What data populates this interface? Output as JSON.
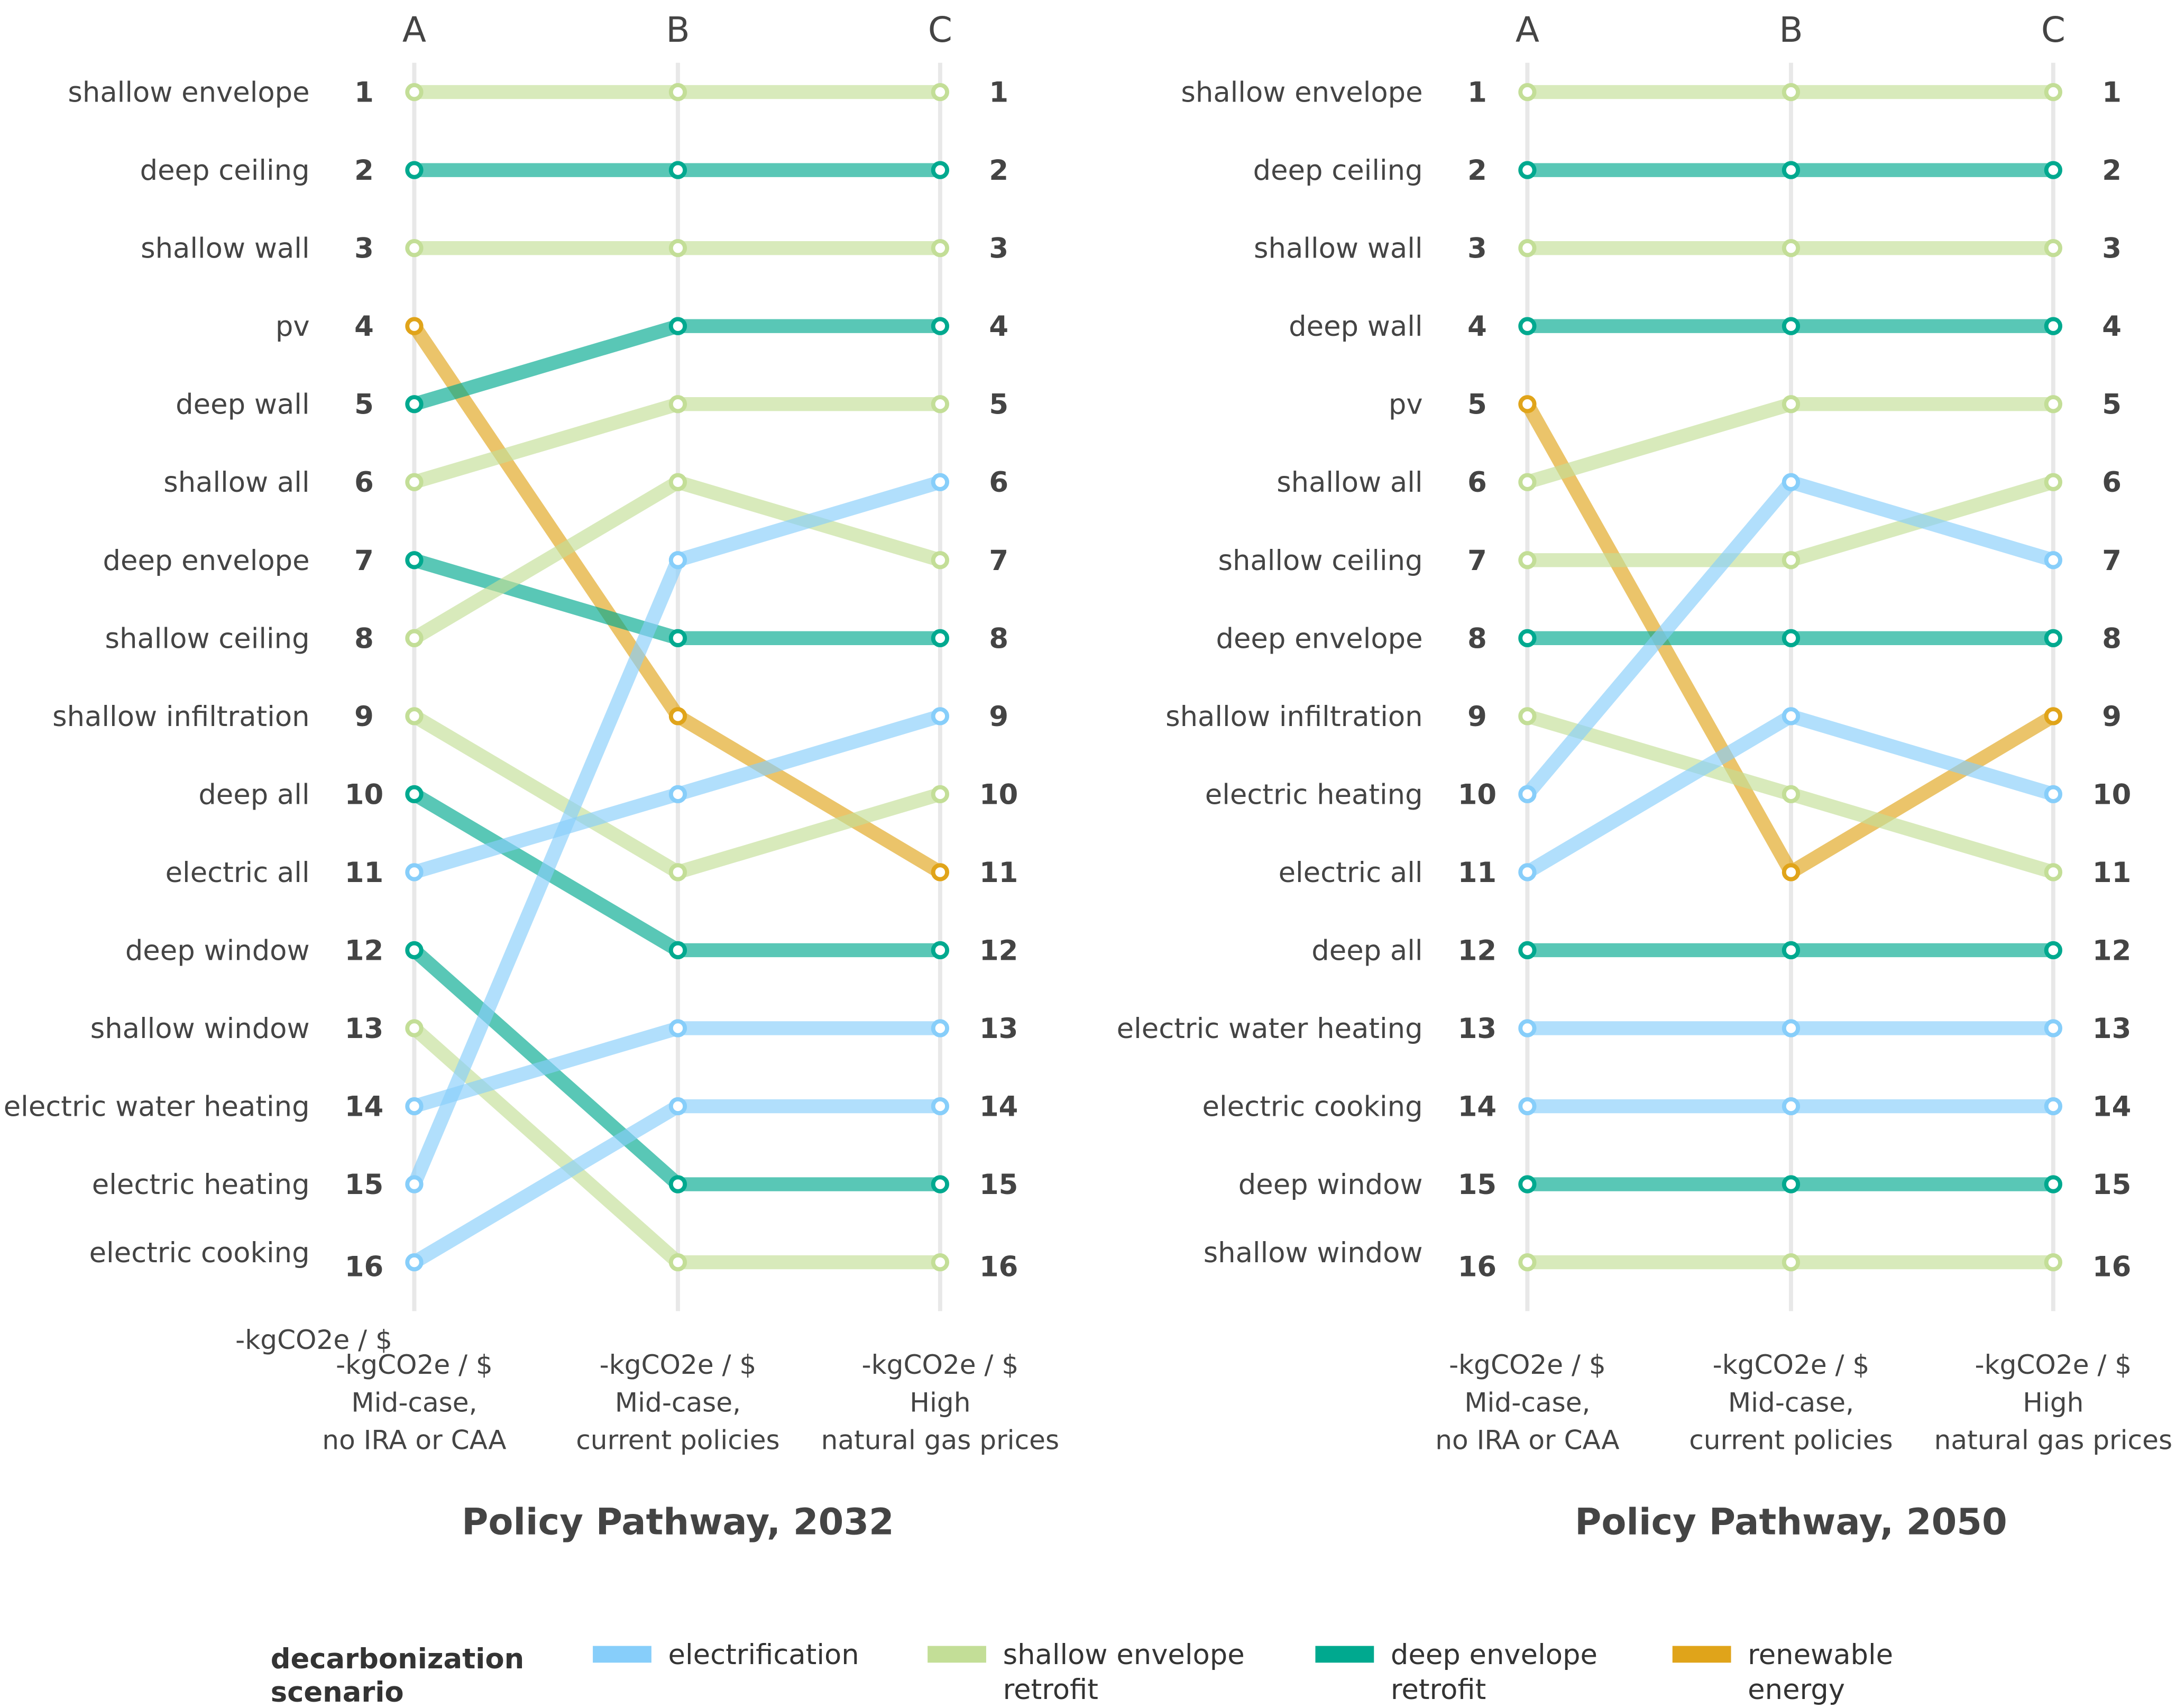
{
  "colors": {
    "electrification": "#87CEFA",
    "shallow": "#C3DE97",
    "deep": "#00A98F",
    "renewable": "#E0A41A"
  },
  "chart_data": [
    {
      "type": "slope",
      "title": "Policy Pathway, 2032",
      "columns": [
        "A",
        "B",
        "C"
      ],
      "xlabel_extra": "-kgCO2e / $",
      "column_labels": [
        [
          "-kgCO2e / $",
          "Mid-case,",
          "no IRA or CAA"
        ],
        [
          "-kgCO2e / $",
          "Mid-case,",
          "current policies"
        ],
        [
          "-kgCO2e / $",
          "High",
          "natural gas prices"
        ]
      ],
      "rank_range": [
        1,
        16
      ],
      "items": [
        {
          "label": "shallow envelope",
          "category": "shallow",
          "ranks": [
            1,
            1,
            1
          ]
        },
        {
          "label": "deep ceiling",
          "category": "deep",
          "ranks": [
            2,
            2,
            2
          ]
        },
        {
          "label": "shallow wall",
          "category": "shallow",
          "ranks": [
            3,
            3,
            3
          ]
        },
        {
          "label": "pv",
          "category": "renewable",
          "ranks": [
            4,
            9,
            11
          ]
        },
        {
          "label": "deep wall",
          "category": "deep",
          "ranks": [
            5,
            4,
            4
          ]
        },
        {
          "label": "shallow all",
          "category": "shallow",
          "ranks": [
            6,
            5,
            5
          ]
        },
        {
          "label": "deep envelope",
          "category": "deep",
          "ranks": [
            7,
            8,
            8
          ]
        },
        {
          "label": "shallow ceiling",
          "category": "shallow",
          "ranks": [
            8,
            6,
            7
          ]
        },
        {
          "label": "shallow infiltration",
          "category": "shallow",
          "ranks": [
            9,
            11,
            10
          ]
        },
        {
          "label": "deep all",
          "category": "deep",
          "ranks": [
            10,
            12,
            12
          ]
        },
        {
          "label": "electric all",
          "category": "electrification",
          "ranks": [
            11,
            10,
            9
          ]
        },
        {
          "label": "deep window",
          "category": "deep",
          "ranks": [
            12,
            15,
            15
          ]
        },
        {
          "label": "shallow window",
          "category": "shallow",
          "ranks": [
            13,
            16,
            16
          ]
        },
        {
          "label": "electric water heating",
          "category": "electrification",
          "ranks": [
            14,
            13,
            13
          ]
        },
        {
          "label": "electric heating",
          "category": "electrification",
          "ranks": [
            15,
            7,
            6
          ]
        },
        {
          "label": "electric cooking",
          "category": "electrification",
          "ranks": [
            16,
            14,
            14
          ]
        }
      ]
    },
    {
      "type": "slope",
      "title": "Policy Pathway, 2050",
      "columns": [
        "A",
        "B",
        "C"
      ],
      "column_labels": [
        [
          "-kgCO2e / $",
          "Mid-case,",
          "no IRA or CAA"
        ],
        [
          "-kgCO2e / $",
          "Mid-case,",
          "current policies"
        ],
        [
          "-kgCO2e / $",
          "High",
          "natural gas prices"
        ]
      ],
      "rank_range": [
        1,
        16
      ],
      "items": [
        {
          "label": "shallow envelope",
          "category": "shallow",
          "ranks": [
            1,
            1,
            1
          ]
        },
        {
          "label": "deep ceiling",
          "category": "deep",
          "ranks": [
            2,
            2,
            2
          ]
        },
        {
          "label": "shallow wall",
          "category": "shallow",
          "ranks": [
            3,
            3,
            3
          ]
        },
        {
          "label": "deep wall",
          "category": "deep",
          "ranks": [
            4,
            4,
            4
          ]
        },
        {
          "label": "pv",
          "category": "renewable",
          "ranks": [
            5,
            11,
            9
          ]
        },
        {
          "label": "shallow all",
          "category": "shallow",
          "ranks": [
            6,
            5,
            5
          ]
        },
        {
          "label": "shallow ceiling",
          "category": "shallow",
          "ranks": [
            7,
            7,
            6
          ]
        },
        {
          "label": "deep envelope",
          "category": "deep",
          "ranks": [
            8,
            8,
            8
          ]
        },
        {
          "label": "shallow infiltration",
          "category": "shallow",
          "ranks": [
            9,
            10,
            11
          ]
        },
        {
          "label": "electric heating",
          "category": "electrification",
          "ranks": [
            10,
            6,
            7
          ]
        },
        {
          "label": "electric all",
          "category": "electrification",
          "ranks": [
            11,
            9,
            10
          ]
        },
        {
          "label": "deep all",
          "category": "deep",
          "ranks": [
            12,
            12,
            12
          ]
        },
        {
          "label": "electric water heating",
          "category": "electrification",
          "ranks": [
            13,
            13,
            13
          ]
        },
        {
          "label": "electric cooking",
          "category": "electrification",
          "ranks": [
            14,
            14,
            14
          ]
        },
        {
          "label": "deep window",
          "category": "deep",
          "ranks": [
            15,
            15,
            15
          ]
        },
        {
          "label": "shallow window",
          "category": "shallow",
          "ranks": [
            16,
            16,
            16
          ]
        }
      ]
    }
  ],
  "legend": {
    "title": [
      "decarbonization",
      "scenario"
    ],
    "entries": [
      {
        "category": "electrification",
        "lines": [
          "electrification"
        ]
      },
      {
        "category": "shallow",
        "lines": [
          "shallow envelope",
          "retrofit"
        ]
      },
      {
        "category": "deep",
        "lines": [
          "deep envelope",
          "retrofit"
        ]
      },
      {
        "category": "renewable",
        "lines": [
          "renewable",
          "energy"
        ]
      }
    ]
  }
}
